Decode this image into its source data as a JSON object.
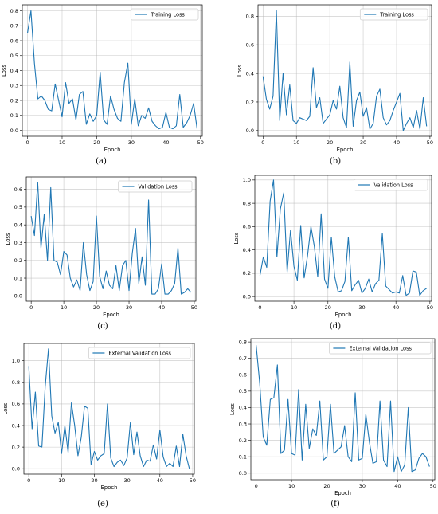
{
  "chart_data": [
    {
      "type": "line",
      "panel_label": "(a)",
      "xlabel": "Epoch",
      "ylabel": "Loss",
      "xlim": [
        -1.5,
        50.5
      ],
      "ylim": [
        -0.04,
        0.84
      ],
      "xticks": [
        0,
        10,
        20,
        30,
        40,
        50
      ],
      "yticks": [
        0.0,
        0.1,
        0.2,
        0.3,
        0.4,
        0.5,
        0.6,
        0.7,
        0.8
      ],
      "grid": true,
      "legend": "top-right",
      "series": [
        {
          "name": "Training Loss",
          "color": "#1f77b4",
          "x": [
            0,
            1,
            2,
            3,
            4,
            5,
            6,
            7,
            8,
            9,
            10,
            11,
            12,
            13,
            14,
            15,
            16,
            17,
            18,
            19,
            20,
            21,
            22,
            23,
            24,
            25,
            26,
            27,
            28,
            29,
            30,
            31,
            32,
            33,
            34,
            35,
            36,
            37,
            38,
            39,
            40,
            41,
            42,
            43,
            44,
            45,
            46,
            47,
            48,
            49
          ],
          "values": [
            0.65,
            0.8,
            0.45,
            0.21,
            0.23,
            0.2,
            0.14,
            0.13,
            0.31,
            0.2,
            0.09,
            0.32,
            0.18,
            0.21,
            0.07,
            0.24,
            0.26,
            0.04,
            0.11,
            0.06,
            0.1,
            0.39,
            0.07,
            0.04,
            0.23,
            0.14,
            0.08,
            0.06,
            0.32,
            0.45,
            0.04,
            0.21,
            0.03,
            0.1,
            0.08,
            0.15,
            0.06,
            0.03,
            0.01,
            0.02,
            0.12,
            0.02,
            0.01,
            0.03,
            0.24,
            0.02,
            0.05,
            0.1,
            0.18,
            0.01
          ]
        }
      ]
    },
    {
      "type": "line",
      "panel_label": "(b)",
      "xlabel": "Epoch",
      "ylabel": "Loss",
      "xlim": [
        -1.5,
        50.5
      ],
      "ylim": [
        -0.04,
        0.88
      ],
      "xticks": [
        0,
        10,
        20,
        30,
        40,
        50
      ],
      "yticks": [
        0.0,
        0.2,
        0.4,
        0.6,
        0.8
      ],
      "grid": true,
      "legend": "top-right",
      "series": [
        {
          "name": "Training Loss",
          "color": "#1f77b4",
          "x": [
            0,
            1,
            2,
            3,
            4,
            5,
            6,
            7,
            8,
            9,
            10,
            11,
            12,
            13,
            14,
            15,
            16,
            17,
            18,
            19,
            20,
            21,
            22,
            23,
            24,
            25,
            26,
            27,
            28,
            29,
            30,
            31,
            32,
            33,
            34,
            35,
            36,
            37,
            38,
            39,
            40,
            41,
            42,
            43,
            44,
            45,
            46,
            47,
            48,
            49
          ],
          "values": [
            0.38,
            0.22,
            0.15,
            0.24,
            0.84,
            0.07,
            0.4,
            0.11,
            0.32,
            0.07,
            0.05,
            0.09,
            0.08,
            0.07,
            0.1,
            0.44,
            0.16,
            0.23,
            0.05,
            0.08,
            0.11,
            0.21,
            0.15,
            0.31,
            0.09,
            0.02,
            0.48,
            0.03,
            0.21,
            0.27,
            0.1,
            0.16,
            0.01,
            0.05,
            0.24,
            0.29,
            0.09,
            0.04,
            0.07,
            0.14,
            0.2,
            0.26,
            0.0,
            0.05,
            0.09,
            0.02,
            0.14,
            0.01,
            0.23,
            0.03
          ]
        }
      ]
    },
    {
      "type": "line",
      "panel_label": "(c)",
      "xlabel": "Epoch",
      "ylabel": "Loss",
      "xlim": [
        -1.5,
        50.5
      ],
      "ylim": [
        -0.03,
        0.67
      ],
      "xticks": [
        0,
        10,
        20,
        30,
        40,
        50
      ],
      "yticks": [
        0.0,
        0.1,
        0.2,
        0.3,
        0.4,
        0.5,
        0.6
      ],
      "grid": true,
      "legend": "top-right",
      "series": [
        {
          "name": "Validation Loss",
          "color": "#1f77b4",
          "x": [
            0,
            1,
            2,
            3,
            4,
            5,
            6,
            7,
            8,
            9,
            10,
            11,
            12,
            13,
            14,
            15,
            16,
            17,
            18,
            19,
            20,
            21,
            22,
            23,
            24,
            25,
            26,
            27,
            28,
            29,
            30,
            31,
            32,
            33,
            34,
            35,
            36,
            37,
            38,
            39,
            40,
            41,
            42,
            43,
            44,
            45,
            46,
            47,
            48,
            49
          ],
          "values": [
            0.45,
            0.34,
            0.64,
            0.27,
            0.46,
            0.2,
            0.61,
            0.2,
            0.19,
            0.12,
            0.25,
            0.23,
            0.1,
            0.05,
            0.09,
            0.03,
            0.3,
            0.12,
            0.03,
            0.08,
            0.45,
            0.11,
            0.04,
            0.14,
            0.06,
            0.04,
            0.17,
            0.03,
            0.17,
            0.2,
            0.03,
            0.24,
            0.38,
            0.07,
            0.22,
            0.06,
            0.54,
            0.01,
            0.01,
            0.04,
            0.18,
            0.01,
            0.01,
            0.03,
            0.07,
            0.27,
            0.01,
            0.02,
            0.04,
            0.02
          ]
        }
      ]
    },
    {
      "type": "line",
      "panel_label": "(d)",
      "xlabel": "Epoch",
      "ylabel": "Loss",
      "xlim": [
        -1.5,
        50.5
      ],
      "ylim": [
        -0.04,
        1.04
      ],
      "xticks": [
        0,
        10,
        20,
        30,
        40,
        50
      ],
      "yticks": [
        0.0,
        0.2,
        0.4,
        0.6,
        0.8,
        1.0
      ],
      "grid": true,
      "legend": "top-right",
      "series": [
        {
          "name": "Validation Loss",
          "color": "#1f77b4",
          "x": [
            0,
            1,
            2,
            3,
            4,
            5,
            6,
            7,
            8,
            9,
            10,
            11,
            12,
            13,
            14,
            15,
            16,
            17,
            18,
            19,
            20,
            21,
            22,
            23,
            24,
            25,
            26,
            27,
            28,
            29,
            30,
            31,
            32,
            33,
            34,
            35,
            36,
            37,
            38,
            39,
            40,
            41,
            42,
            43,
            44,
            45,
            46,
            47,
            48,
            49
          ],
          "values": [
            0.18,
            0.34,
            0.25,
            0.82,
            1.0,
            0.34,
            0.75,
            0.89,
            0.21,
            0.57,
            0.26,
            0.14,
            0.61,
            0.16,
            0.35,
            0.6,
            0.43,
            0.17,
            0.71,
            0.15,
            0.07,
            0.51,
            0.17,
            0.04,
            0.05,
            0.13,
            0.51,
            0.05,
            0.1,
            0.14,
            0.03,
            0.07,
            0.15,
            0.04,
            0.11,
            0.14,
            0.54,
            0.09,
            0.06,
            0.03,
            0.04,
            0.03,
            0.18,
            0.01,
            0.03,
            0.22,
            0.21,
            0.01,
            0.05,
            0.07
          ]
        }
      ]
    },
    {
      "type": "line",
      "panel_label": "(e)",
      "xlabel": "Epoch",
      "ylabel": "Loss",
      "xlim": [
        -1.5,
        50.5
      ],
      "ylim": [
        -0.05,
        1.16
      ],
      "xticks": [
        0,
        10,
        20,
        30,
        40,
        50
      ],
      "yticks": [
        0.0,
        0.2,
        0.4,
        0.6,
        0.8,
        1.0
      ],
      "grid": true,
      "legend": "top-right",
      "series": [
        {
          "name": "External Validation Loss",
          "color": "#1f77b4",
          "x": [
            0,
            1,
            2,
            3,
            4,
            5,
            6,
            7,
            8,
            9,
            10,
            11,
            12,
            13,
            14,
            15,
            16,
            17,
            18,
            19,
            20,
            21,
            22,
            23,
            24,
            25,
            26,
            27,
            28,
            29,
            30,
            31,
            32,
            33,
            34,
            35,
            36,
            37,
            38,
            39,
            40,
            41,
            42,
            43,
            44,
            45,
            46,
            47,
            48,
            49
          ],
          "values": [
            0.95,
            0.37,
            0.71,
            0.21,
            0.2,
            0.76,
            1.11,
            0.49,
            0.33,
            0.43,
            0.14,
            0.4,
            0.15,
            0.61,
            0.4,
            0.12,
            0.29,
            0.58,
            0.56,
            0.04,
            0.16,
            0.08,
            0.12,
            0.14,
            0.6,
            0.1,
            0.02,
            0.06,
            0.08,
            0.03,
            0.1,
            0.43,
            0.13,
            0.34,
            0.12,
            0.02,
            0.08,
            0.07,
            0.22,
            0.09,
            0.36,
            0.11,
            0.02,
            0.05,
            0.02,
            0.21,
            0.02,
            0.32,
            0.12,
            0.0
          ]
        }
      ]
    },
    {
      "type": "line",
      "panel_label": "(f)",
      "xlabel": "Epoch",
      "ylabel": "Loss",
      "xlim": [
        -1.5,
        50.5
      ],
      "ylim": [
        -0.04,
        0.82
      ],
      "xticks": [
        0,
        10,
        20,
        30,
        40,
        50
      ],
      "yticks": [
        0.0,
        0.1,
        0.2,
        0.3,
        0.4,
        0.5,
        0.6,
        0.7,
        0.8
      ],
      "grid": true,
      "legend": "top-right",
      "series": [
        {
          "name": "External Validation Loss",
          "color": "#1f77b4",
          "x": [
            0,
            1,
            2,
            3,
            4,
            5,
            6,
            7,
            8,
            9,
            10,
            11,
            12,
            13,
            14,
            15,
            16,
            17,
            18,
            19,
            20,
            21,
            22,
            23,
            24,
            25,
            26,
            27,
            28,
            29,
            30,
            31,
            32,
            33,
            34,
            35,
            36,
            37,
            38,
            39,
            40,
            41,
            42,
            43,
            44,
            45,
            46,
            47,
            48,
            49
          ],
          "values": [
            0.78,
            0.55,
            0.22,
            0.17,
            0.45,
            0.46,
            0.66,
            0.12,
            0.14,
            0.45,
            0.12,
            0.11,
            0.51,
            0.08,
            0.42,
            0.15,
            0.27,
            0.23,
            0.44,
            0.08,
            0.1,
            0.42,
            0.12,
            0.14,
            0.16,
            0.29,
            0.1,
            0.07,
            0.49,
            0.08,
            0.09,
            0.36,
            0.19,
            0.06,
            0.07,
            0.44,
            0.08,
            0.04,
            0.44,
            0.01,
            0.1,
            0.01,
            0.05,
            0.4,
            0.01,
            0.02,
            0.09,
            0.12,
            0.1,
            0.04
          ]
        }
      ]
    }
  ]
}
